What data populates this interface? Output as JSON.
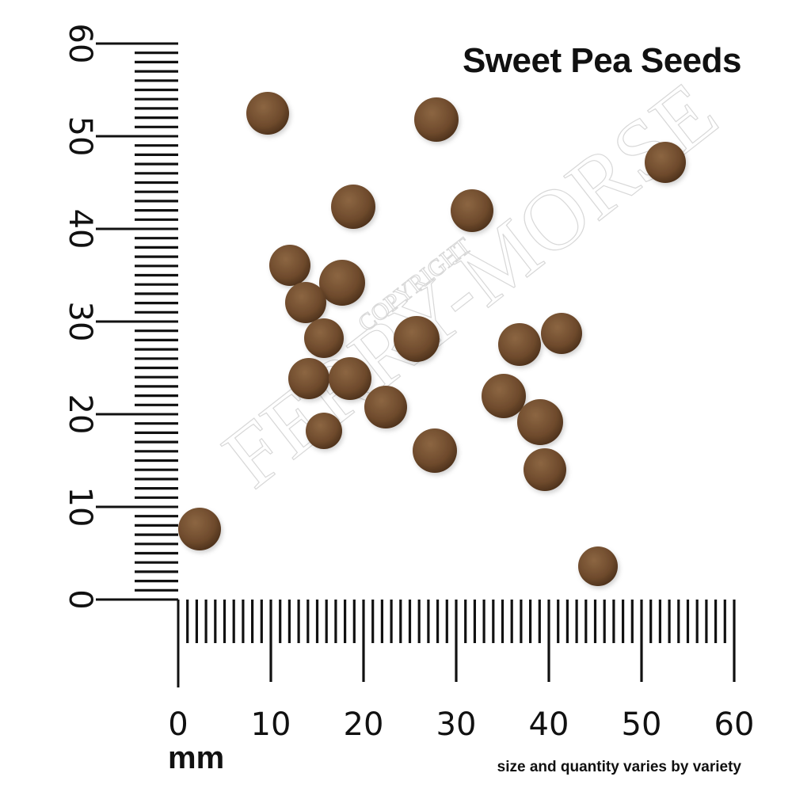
{
  "title": "Sweet Pea Seeds",
  "unit_label": "mm",
  "footnote": "size and quantity varies by variety",
  "watermark": {
    "brand": "FERRY-MORSE",
    "copyright": "COPYRIGHT"
  },
  "ruler": {
    "vertical_labels": [
      "0",
      "10",
      "20",
      "30",
      "40",
      "50",
      "60"
    ],
    "horizontal_labels": [
      "0",
      "10",
      "20",
      "30",
      "40",
      "50",
      "60"
    ],
    "max_mm": 60
  },
  "colors": {
    "seed": "#6e4a2c",
    "ink": "#111111"
  }
}
